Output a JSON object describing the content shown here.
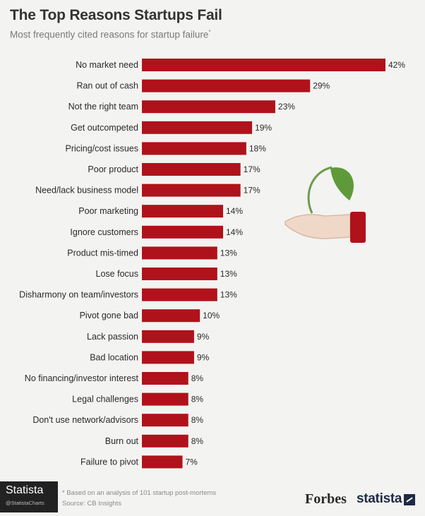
{
  "header": {
    "title": "The Top Reasons Startups Fail",
    "subtitle": "Most frequently cited reasons for startup failure",
    "subtitle_mark": "*"
  },
  "chart_data": {
    "type": "bar",
    "orientation": "horizontal",
    "title": "The Top Reasons Startups Fail",
    "subtitle": "Most frequently cited reasons for startup failure*",
    "xlabel": "",
    "ylabel": "",
    "xlim": [
      0,
      42
    ],
    "grid": false,
    "value_suffix": "%",
    "categories": [
      "No market need",
      "Ran out of cash",
      "Not the right team",
      "Get outcompeted",
      "Pricing/cost issues",
      "Poor product",
      "Need/lack business model",
      "Poor marketing",
      "Ignore customers",
      "Product mis-timed",
      "Lose focus",
      "Disharmony on team/investors",
      "Pivot gone bad",
      "Lack passion",
      "Bad location",
      "No financing/investor interest",
      "Legal challenges",
      "Don't use network/advisors",
      "Burn out",
      "Failure to pivot"
    ],
    "values": [
      42,
      29,
      23,
      19,
      18,
      17,
      17,
      14,
      14,
      13,
      13,
      13,
      10,
      9,
      9,
      8,
      8,
      8,
      8,
      7
    ],
    "value_labels": [
      "42%",
      "29%",
      "23%",
      "19%",
      "18%",
      "17%",
      "17%",
      "14%",
      "14%",
      "13%",
      "13%",
      "13%",
      "10%",
      "9%",
      "9%",
      "8%",
      "8%",
      "8%",
      "8%",
      "7%"
    ]
  },
  "colors": {
    "bar": "#b0121b",
    "leaf": "#5e9a3a",
    "stem": "#6f9a4c",
    "hand": "#f0d8c8",
    "cuff": "#b0121b"
  },
  "footer": {
    "footnote": "* Based on an analysis of 101 startup post-mortems",
    "source": "Source: CB Insights",
    "badge_name": "Statista",
    "badge_handle": "@StatistaCharts",
    "forbes": "Forbes",
    "statista": "statista"
  },
  "icons": {
    "illustration": "hand-holding-sprout-icon",
    "statista_mark": "statista-arrow-icon"
  }
}
